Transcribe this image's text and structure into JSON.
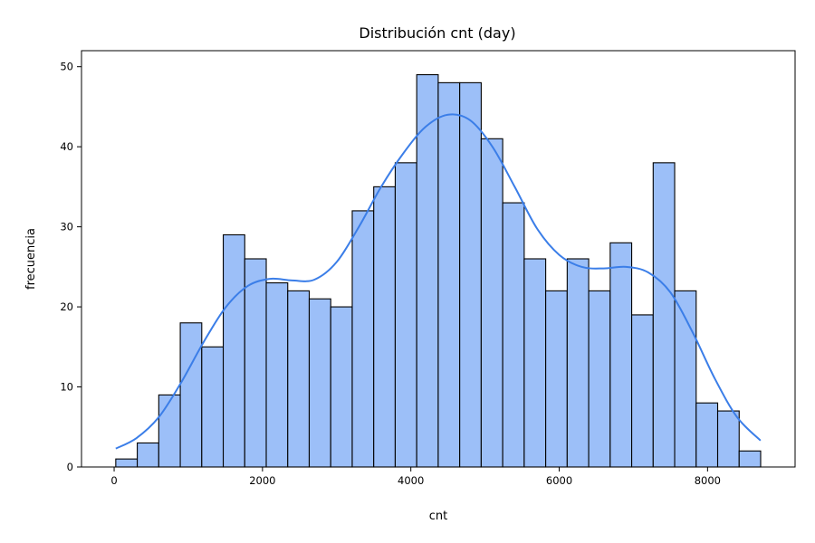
{
  "chart_data": {
    "type": "bar",
    "title": "Distribución cnt (day)",
    "xlabel": "cnt",
    "ylabel": "frecuencia",
    "xlim": [
      -440,
      9180
    ],
    "ylim": [
      0,
      52
    ],
    "xticks": [
      0,
      2000,
      4000,
      6000,
      8000
    ],
    "xtick_labels": [
      "0",
      "2000",
      "4000",
      "6000",
      "8000"
    ],
    "yticks": [
      0,
      10,
      20,
      30,
      40,
      50
    ],
    "ytick_labels": [
      "0",
      "10",
      "20",
      "30",
      "40",
      "50"
    ],
    "grid": false,
    "bar_color": "#9cbff8",
    "edge_color": "#000000",
    "kde_color": "#3b7ee8",
    "bins": {
      "start": 22,
      "width": 289.8,
      "counts": [
        1,
        3,
        9,
        18,
        15,
        29,
        26,
        23,
        22,
        21,
        20,
        32,
        35,
        38,
        49,
        48,
        48,
        41,
        33,
        26,
        22,
        26,
        22,
        28,
        19,
        38,
        22,
        8,
        7,
        2
      ]
    },
    "kde": {
      "x": [
        22,
        300,
        600,
        900,
        1200,
        1500,
        1800,
        2100,
        2400,
        2700,
        3000,
        3300,
        3600,
        3900,
        4200,
        4500,
        4800,
        5100,
        5400,
        5700,
        6000,
        6300,
        6600,
        6900,
        7200,
        7500,
        7800,
        8100,
        8400,
        8714
      ],
      "y": [
        2.3,
        3.6,
        6.2,
        10.5,
        15.5,
        19.9,
        22.6,
        23.5,
        23.3,
        23.4,
        25.6,
        30.0,
        35.0,
        39.2,
        42.5,
        44.0,
        43.3,
        40.0,
        35.0,
        29.8,
        26.5,
        25.0,
        24.8,
        25.0,
        24.3,
        21.8,
        16.8,
        11.0,
        6.2,
        3.3
      ]
    }
  }
}
